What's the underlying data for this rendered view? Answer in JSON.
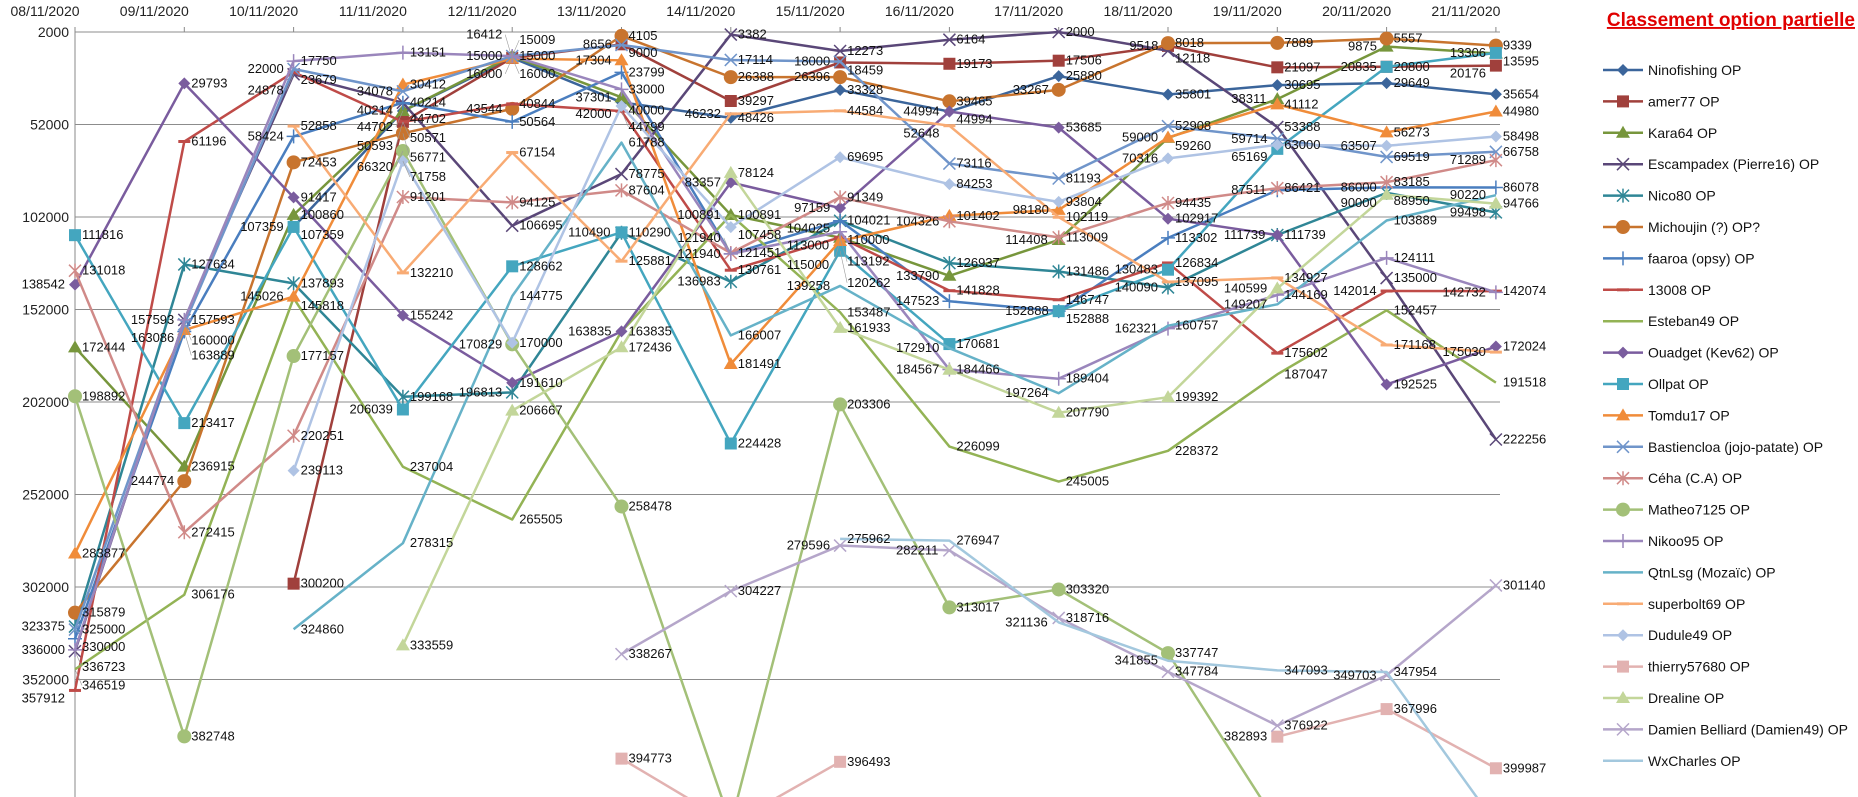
{
  "chart_data": {
    "type": "line",
    "title": "Classement option partielle",
    "xlabel": "",
    "ylabel": "",
    "y_reversed": true,
    "ylim": [
      2000,
      415500
    ],
    "y_ticks": [
      2000,
      52000,
      102000,
      152000,
      202000,
      252000,
      302000,
      352000
    ],
    "grid": true,
    "legend_position": "right",
    "categories": [
      "08/11/2020",
      "09/11/2020",
      "10/11/2020",
      "11/11/2020",
      "12/11/2020",
      "13/11/2020",
      "14/11/2020",
      "15/11/2020",
      "16/11/2020",
      "17/11/2020",
      "18/11/2020",
      "19/11/2020",
      "20/11/2020",
      "21/11/2020"
    ],
    "series": [
      {
        "name": "Ninofishing OP",
        "color": "#3B659B",
        "marker": "diamond",
        "values": [
          null,
          null,
          107359,
          44702,
          16000,
          40000,
          48426,
          33328,
          44994,
          25880,
          35801,
          30695,
          29649,
          35654
        ]
      },
      {
        "name": "amer77 OP",
        "color": "#A0403C",
        "marker": "square",
        "values": [
          null,
          null,
          300200,
          50593,
          16000,
          8656,
          39297,
          18459,
          19173,
          17506,
          9518,
          21097,
          20800,
          20176
        ]
      },
      {
        "name": "Kara64  OP",
        "color": "#77963C",
        "marker": "triangle",
        "values": [
          172444,
          236915,
          100860,
          44702,
          15000,
          37301,
          100891,
          113192,
          133790,
          114408,
          59260,
          38311,
          9875,
          13595
        ]
      },
      {
        "name": "Escampadex (Pierre16) OP",
        "color": "#5A4778",
        "marker": "x",
        "values": [
          336723,
          157593,
          24878,
          40214,
          106695,
          78775,
          3382,
          12273,
          6164,
          2000,
          12118,
          53388,
          135000,
          222256
        ]
      },
      {
        "name": "Nico80 OP",
        "color": "#2F8696",
        "marker": "asterisk",
        "values": [
          323375,
          127634,
          137893,
          199168,
          196813,
          110490,
          136983,
          104025,
          126937,
          131486,
          140090,
          111739,
          88950,
          99498
        ]
      },
      {
        "name": "Michoujin (?) OP?",
        "color": "#C8742E",
        "marker": "circle",
        "values": [
          315879,
          244774,
          72453,
          56771,
          43544,
          4105,
          26388,
          26396,
          39465,
          33267,
          8018,
          7889,
          5557,
          9339
        ]
      },
      {
        "name": "faaroa (opsy) OP",
        "color": "#4A7EBF",
        "marker": "plus",
        "values": [
          330000,
          163889,
          58424,
          40214,
          50564,
          23799,
          121940,
          104021,
          147523,
          152888,
          113302,
          87511,
          86000,
          86078
        ]
      },
      {
        "name": "13008 OP",
        "color": "#BF4B48",
        "marker": "dash",
        "values": [
          357912,
          61196,
          23679,
          50571,
          40844,
          44799,
          130761,
          113000,
          141828,
          146747,
          126834,
          175602,
          142014,
          142074
        ]
      },
      {
        "name": "Esteban49 OP",
        "color": "#93B355",
        "marker": "none",
        "values": [
          346519,
          306176,
          145818,
          237004,
          265505,
          163835,
          100891,
          153487,
          226099,
          245005,
          228372,
          187047,
          152457,
          191518
        ]
      },
      {
        "name": "Ouadget (Kev62) OP",
        "color": "#7A5C9E",
        "marker": "diamond",
        "values": [
          138542,
          29793,
          91417,
          155242,
          191610,
          163835,
          83357,
          97159,
          44994,
          53685,
          102917,
          111739,
          192525,
          172024
        ]
      },
      {
        "name": "Ollpat OP",
        "color": "#44A6BF",
        "marker": "square",
        "values": [
          111816,
          213417,
          107359,
          206039,
          128662,
          110290,
          224428,
          120262,
          170681,
          152888,
          130483,
          65169,
          20835,
          13306
        ]
      },
      {
        "name": "Tomdu17 OP",
        "color": "#F08C3A",
        "marker": "triangle",
        "values": [
          283877,
          163086,
          145026,
          30412,
          16412,
          17304,
          181491,
          115000,
          101402,
          98180,
          59000,
          41112,
          56273,
          44980
        ]
      },
      {
        "name": "Bastiencloa (jojo-patate) OP",
        "color": "#7095CA",
        "marker": "x",
        "values": [
          325000,
          160000,
          22000,
          34078,
          15009,
          9000,
          17114,
          18000,
          73116,
          81193,
          52908,
          59714,
          69519,
          66758
        ]
      },
      {
        "name": "Céha (C.A) OP",
        "color": "#D08A88",
        "marker": "asterisk",
        "values": [
          131018,
          272415,
          220251,
          91201,
          94125,
          87604,
          121451,
          91349,
          104326,
          113009,
          94435,
          86421,
          83185,
          71289
        ]
      },
      {
        "name": "Matheo7125 OP",
        "color": "#A3C078",
        "marker": "circle",
        "values": [
          198892,
          382748,
          177157,
          66320,
          170829,
          258478,
          430000,
          203306,
          313017,
          303320,
          337747,
          430000,
          null,
          null
        ]
      },
      {
        "name": "Nikoo95 OP",
        "color": "#9A86BC",
        "marker": "plus",
        "values": [
          336000,
          157593,
          17750,
          13151,
          15000,
          33000,
          121940,
          110000,
          184466,
          189404,
          162321,
          144169,
          124111,
          142732
        ]
      },
      {
        "name": "QtnLsg (Mozaïc) OP",
        "color": "#66B2C8",
        "marker": "none",
        "values": [
          null,
          null,
          324860,
          278315,
          144775,
          61788,
          166007,
          139258,
          172910,
          197264,
          160757,
          149207,
          103889,
          90220
        ]
      },
      {
        "name": "superbolt69 OP",
        "color": "#F8AB74",
        "marker": "dash",
        "values": [
          null,
          null,
          52858,
          132210,
          67154,
          125881,
          46232,
          44584,
          52648,
          102119,
          137095,
          134927,
          171168,
          175030
        ]
      },
      {
        "name": "Dudule49 OP",
        "color": "#AFC3E4",
        "marker": "diamond",
        "values": [
          null,
          null,
          239113,
          71758,
          170000,
          42000,
          107458,
          69695,
          84253,
          93804,
          70316,
          63000,
          63507,
          58498
        ]
      },
      {
        "name": "thierry57680 OP",
        "color": "#E2B2B1",
        "marker": "square",
        "values": [
          null,
          null,
          null,
          null,
          null,
          394773,
          430000,
          396493,
          null,
          null,
          null,
          382893,
          367996,
          399987
        ]
      },
      {
        "name": "Drealine OP",
        "color": "#C3D69A",
        "marker": "triangle",
        "values": [
          null,
          null,
          null,
          333559,
          206667,
          172436,
          78124,
          161933,
          184567,
          207790,
          199392,
          140599,
          90000,
          94766
        ]
      },
      {
        "name": "Damien Belliard (Damien49) OP",
        "color": "#B5A6CA",
        "marker": "x",
        "values": [
          null,
          null,
          null,
          null,
          null,
          338267,
          304227,
          279596,
          282211,
          318716,
          347784,
          376922,
          349703,
          301140
        ]
      },
      {
        "name": "WxCharles OP",
        "color": "#A3C8DE",
        "marker": "none",
        "values": [
          null,
          null,
          null,
          null,
          null,
          null,
          null,
          275962,
          276947,
          321136,
          341855,
          347093,
          347954,
          430000
        ]
      }
    ]
  }
}
